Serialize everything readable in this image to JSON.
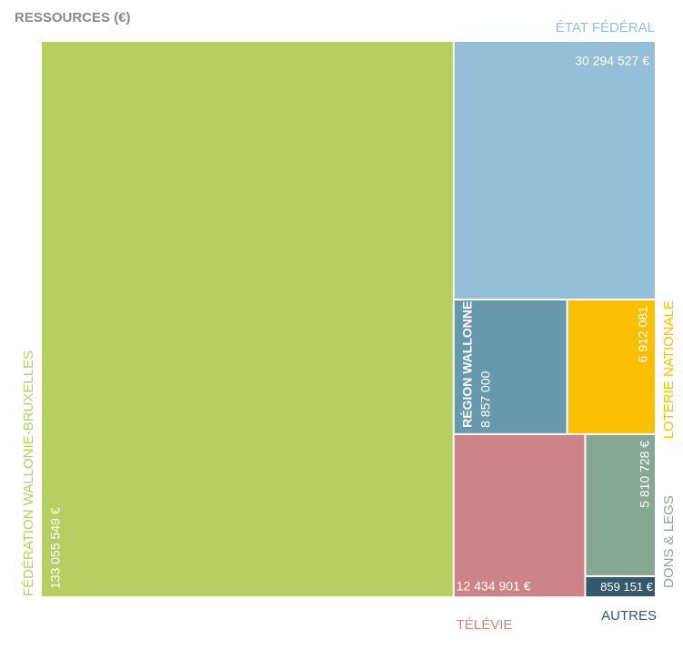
{
  "chart_data": {
    "type": "treemap",
    "title": "RESSOURCES (€)",
    "categories": [
      "FÉDÉRATION WALLONIE-BRUXELLES",
      "ÉTAT FÉDÉRAL",
      "RÉGION WALLONNE",
      "LOTERIE NATIONALE",
      "TÉLÉVIE",
      "DONS & LEGS",
      "AUTRES"
    ],
    "values": [
      133055549,
      30294527,
      8857000,
      6912081,
      12434901,
      5810728,
      859151
    ],
    "value_labels": [
      "133 055 549 €",
      "30 294 527 €",
      "8 857 000",
      "6 912 081",
      "12 434 901 €",
      "5 810 728 €",
      "859 151 €"
    ],
    "colors": [
      "#b6cf62",
      "#93c0d8",
      "#6898ac",
      "#f9bf00",
      "#cc8488",
      "#86a893",
      "#33596a"
    ]
  }
}
